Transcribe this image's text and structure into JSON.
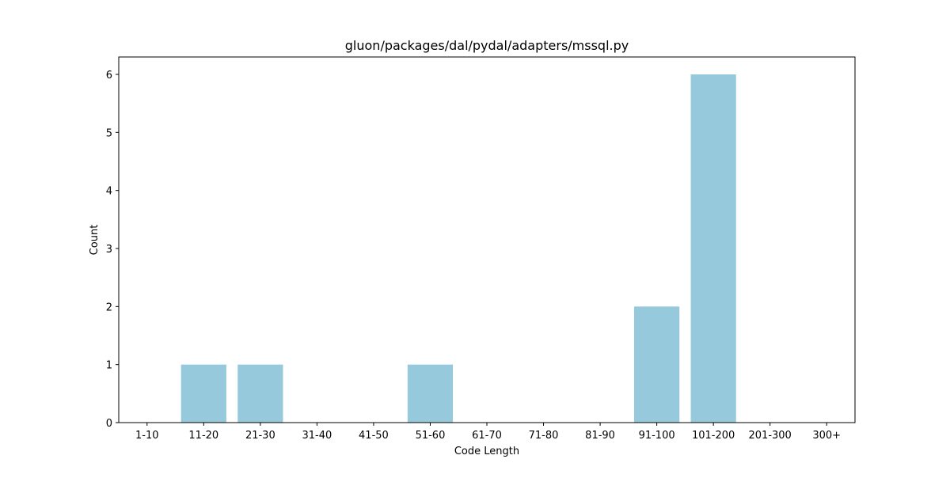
{
  "chart_data": {
    "type": "bar",
    "title": "gluon/packages/dal/pydal/adapters/mssql.py",
    "xlabel": "Code Length",
    "ylabel": "Count",
    "categories": [
      "1-10",
      "11-20",
      "21-30",
      "31-40",
      "41-50",
      "51-60",
      "61-70",
      "71-80",
      "81-90",
      "91-100",
      "101-200",
      "201-300",
      "300+"
    ],
    "values": [
      0,
      1,
      1,
      0,
      0,
      1,
      0,
      0,
      0,
      2,
      6,
      0,
      0
    ],
    "ylim": [
      0,
      6.3
    ],
    "yticks": [
      0,
      1,
      2,
      3,
      4,
      5,
      6
    ],
    "bar_color": "#96c9dc",
    "grid": false,
    "legend": "none"
  }
}
